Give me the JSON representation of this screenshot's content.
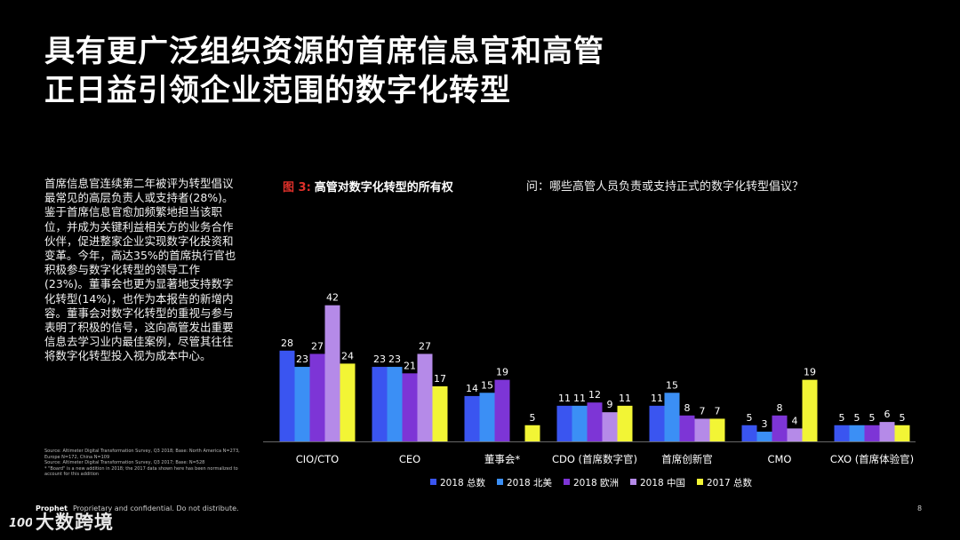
{
  "slide": {
    "title_line1": "具有更广泛组织资源的首席信息官和高管",
    "title_line2": "正日益引领企业范围的数字化转型",
    "body": "首席信息官连续第二年被评为转型倡议最常见的高层负责人或支持者(28%)。鉴于首席信息官愈加频繁地担当该职位，并成为关键利益相关方的业务合作伙伴，促进整家企业实现数字化投资和变革。今年，高达35%的首席执行官也积极参与数字化转型的领导工作 (23%)。董事会也更为显著地支持数字化转型(14%)，也作为本报告的新增内容。董事会对数字化转型的重视与参与表明了积极的信号，这向高管发出重要信息去学习业内最佳案例，尽管其往往将数字化转型投入视为成本中心。",
    "source_lines": [
      "Source: Altimeter Digital Transformation Survey, Q3 2018; Base: North America N=273,",
      "Europe N=172, China N=109",
      "Source: Altimeter Digital Transformation Survey, Q3 2017; Base: N=528",
      "* \"Board\" is a new addition in 2018; the 2017 data shown here has been normalized to",
      "account for this addition"
    ],
    "figure_prefix": "图 3:",
    "figure_title": "高管对数字化转型的所有权",
    "question": "问：哪些高管人员负责或支持正式的数字化转型倡议？",
    "footer_brand": "Prophet",
    "footer_note": "Proprietary and confidential. Do not distribute.",
    "page_number": "8",
    "watermark_logo": "1008",
    "watermark_text": "大数跨境"
  },
  "chart_data": {
    "type": "bar",
    "title": "高管对数字化转型的所有权",
    "categories": [
      "CIO/CTO",
      "CEO",
      "董事会*",
      "CDO (首席数字官)",
      "首席创新官",
      "CMO",
      "CXO (首席体验官)"
    ],
    "series": [
      {
        "name": "2018 总数",
        "color": "#3a55f0",
        "values": [
          28,
          23,
          14,
          11,
          11,
          5,
          5
        ]
      },
      {
        "name": "2018 北美",
        "color": "#3b8ff5",
        "values": [
          23,
          23,
          15,
          11,
          15,
          3,
          5
        ]
      },
      {
        "name": "2018 欧洲",
        "color": "#7d35d6",
        "values": [
          27,
          21,
          19,
          12,
          8,
          8,
          5
        ]
      },
      {
        "name": "2018 中国",
        "color": "#b58ae8",
        "values": [
          42,
          27,
          null,
          9,
          7,
          4,
          6
        ]
      },
      {
        "name": "2017 总数",
        "color": "#f2f535",
        "values": [
          24,
          17,
          5,
          11,
          7,
          19,
          5
        ]
      }
    ],
    "ylim": [
      0,
      50
    ],
    "grid": false,
    "legend": "bottom"
  }
}
